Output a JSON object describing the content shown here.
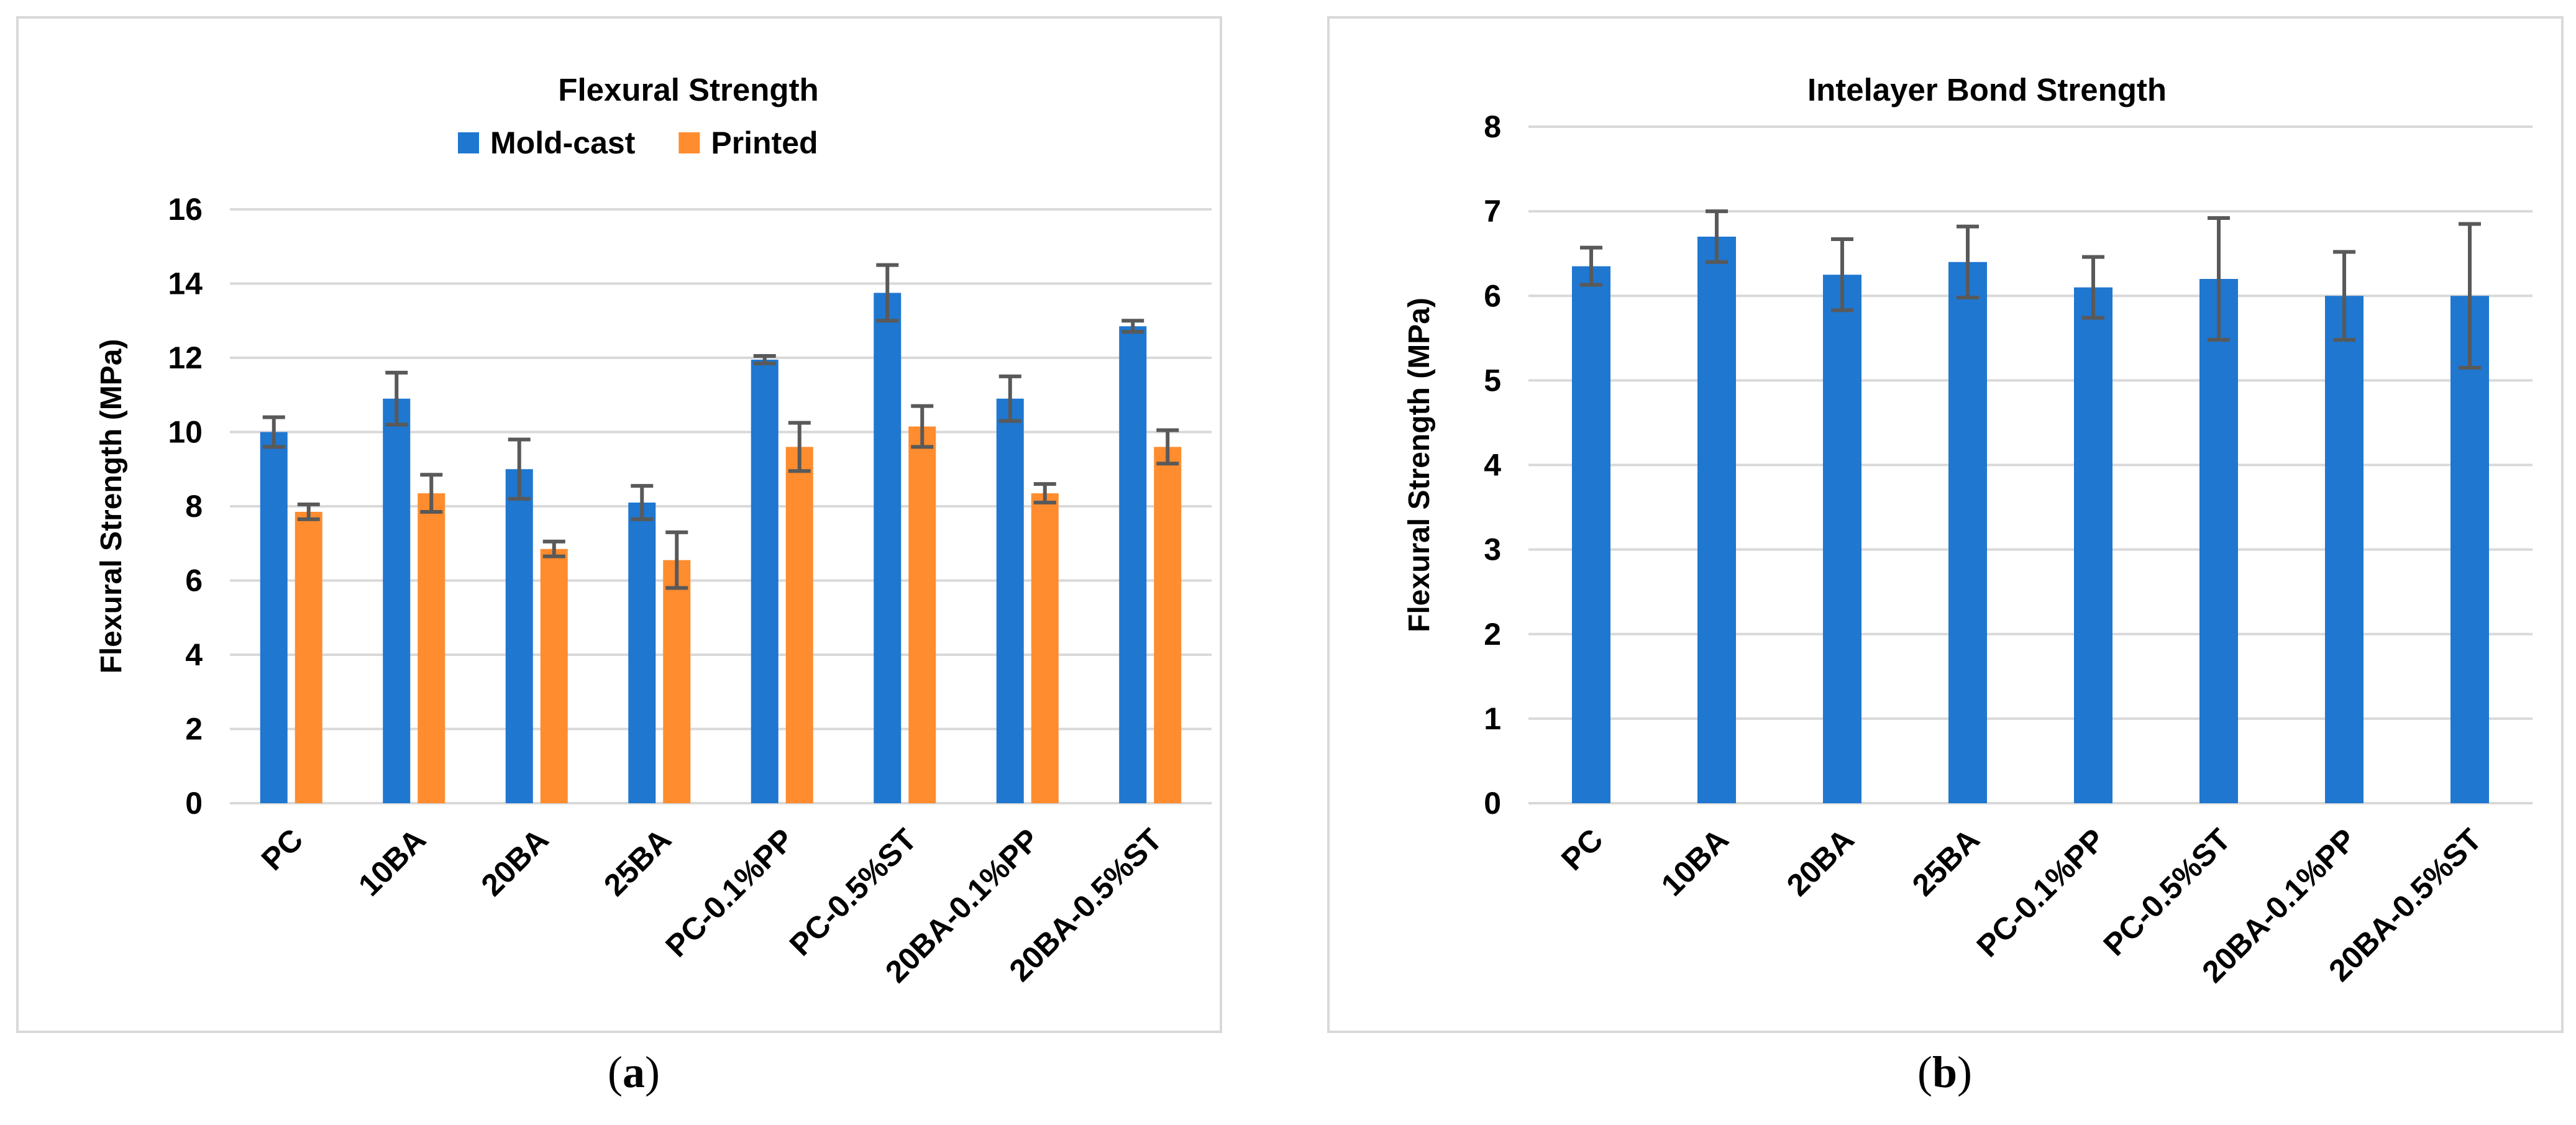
{
  "colors": {
    "mold": "#1f77d0",
    "printed": "#ff8c2e",
    "grid": "#d9d9d9",
    "error": "#595959",
    "text": "#000000"
  },
  "chart_data": [
    {
      "type": "bar",
      "title": "Flexural Strength",
      "ylabel": "Flexural Strength (MPa)",
      "xlabel": "",
      "ylim": [
        0,
        16
      ],
      "yticks": [
        0,
        2,
        4,
        6,
        8,
        10,
        12,
        14,
        16
      ],
      "grid": true,
      "legend": "top-center",
      "categories": [
        "PC",
        "10BA",
        "20BA",
        "25BA",
        "PC-0.1%PP",
        "PC-0.5%ST",
        "20BA-0.1%PP",
        "20BA-0.5%ST"
      ],
      "series": [
        {
          "name": "Mold-cast",
          "color": "#1f77d0",
          "values": [
            10.0,
            10.9,
            9.0,
            8.1,
            11.95,
            13.75,
            10.9,
            12.85
          ],
          "errors": [
            0.4,
            0.7,
            0.8,
            0.45,
            0.1,
            0.75,
            0.6,
            0.15
          ]
        },
        {
          "name": "Printed",
          "color": "#ff8c2e",
          "values": [
            7.85,
            8.35,
            6.85,
            6.55,
            9.6,
            10.15,
            8.35,
            9.6
          ],
          "errors": [
            0.2,
            0.5,
            0.2,
            0.75,
            0.65,
            0.55,
            0.25,
            0.45
          ]
        }
      ]
    },
    {
      "type": "bar",
      "title": "Intelayer Bond Strength",
      "ylabel": "Flexural Strength (MPa)",
      "xlabel": "",
      "ylim": [
        0,
        8
      ],
      "yticks": [
        0,
        1,
        2,
        3,
        4,
        5,
        6,
        7,
        8
      ],
      "grid": true,
      "legend": "none",
      "categories": [
        "PC",
        "10BA",
        "20BA",
        "25BA",
        "PC-0.1%PP",
        "PC-0.5%ST",
        "20BA-0.1%PP",
        "20BA-0.5%ST"
      ],
      "series": [
        {
          "color": "#1f77d0",
          "values": [
            6.35,
            6.7,
            6.25,
            6.4,
            6.1,
            6.2,
            6.0,
            6.0
          ],
          "errors": [
            0.22,
            0.3,
            0.42,
            0.42,
            0.36,
            0.72,
            0.52,
            0.85
          ]
        }
      ]
    }
  ],
  "captions": {
    "a": "a",
    "b": "b"
  }
}
